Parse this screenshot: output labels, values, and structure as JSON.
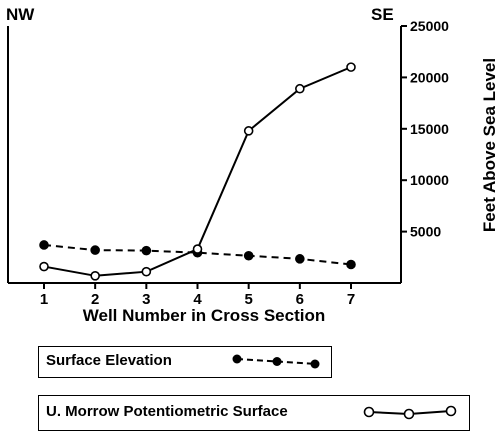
{
  "chart_data": {
    "type": "line",
    "left_corner_label": "NW",
    "right_corner_label": "SE",
    "xlabel": "Well Number in Cross Section",
    "ylabel": "Feet Above Sea Level",
    "x": [
      1,
      2,
      3,
      4,
      5,
      6,
      7
    ],
    "xticks": [
      "1",
      "2",
      "3",
      "4",
      "5",
      "6",
      "7"
    ],
    "yticks": [
      5000,
      10000,
      15000,
      20000,
      25000
    ],
    "ytick_labels": [
      "5000",
      "10000",
      "15000",
      "20000",
      "25000"
    ],
    "ylim": [
      0,
      25000
    ],
    "y_axis_side": "right",
    "grid": false,
    "series": [
      {
        "name": "Surface Elevation",
        "style": "dashed",
        "marker": "filled-circle",
        "color": "#000000",
        "x": [
          1,
          2,
          3,
          4,
          5,
          6,
          7
        ],
        "values": [
          3700,
          3200,
          3150,
          2950,
          2650,
          2350,
          1800
        ]
      },
      {
        "name": "U. Morrow Potentiometric Surface",
        "style": "solid",
        "marker": "open-circle",
        "color": "#000000",
        "x": [
          1,
          2,
          3,
          4,
          5,
          6,
          7
        ],
        "values": [
          1600,
          700,
          1100,
          3300,
          14800,
          18900,
          21000
        ]
      }
    ]
  }
}
